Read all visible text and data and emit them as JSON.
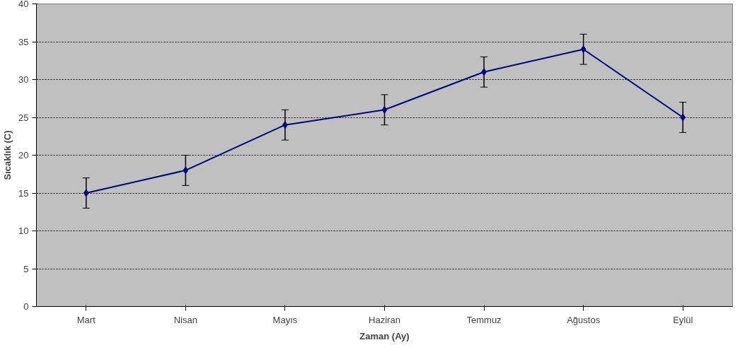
{
  "chart_data": {
    "type": "line",
    "xlabel": "Zaman (Ay)",
    "ylabel": "Sıcaklık (C)",
    "categories": [
      "Mart",
      "Nisan",
      "Mayıs",
      "Haziran",
      "Temmuz",
      "Ağustos",
      "Eylül"
    ],
    "series": [
      {
        "color": "#000080",
        "values": [
          15,
          18,
          24,
          26,
          31,
          34,
          25
        ],
        "errors": [
          2,
          2,
          2,
          2,
          2,
          2,
          2
        ]
      }
    ],
    "ylim": [
      0,
      40
    ],
    "yticks": [
      0,
      5,
      10,
      15,
      20,
      25,
      30,
      35,
      40
    ],
    "grid": "y",
    "marker": "diamond",
    "line_style": "solid"
  }
}
